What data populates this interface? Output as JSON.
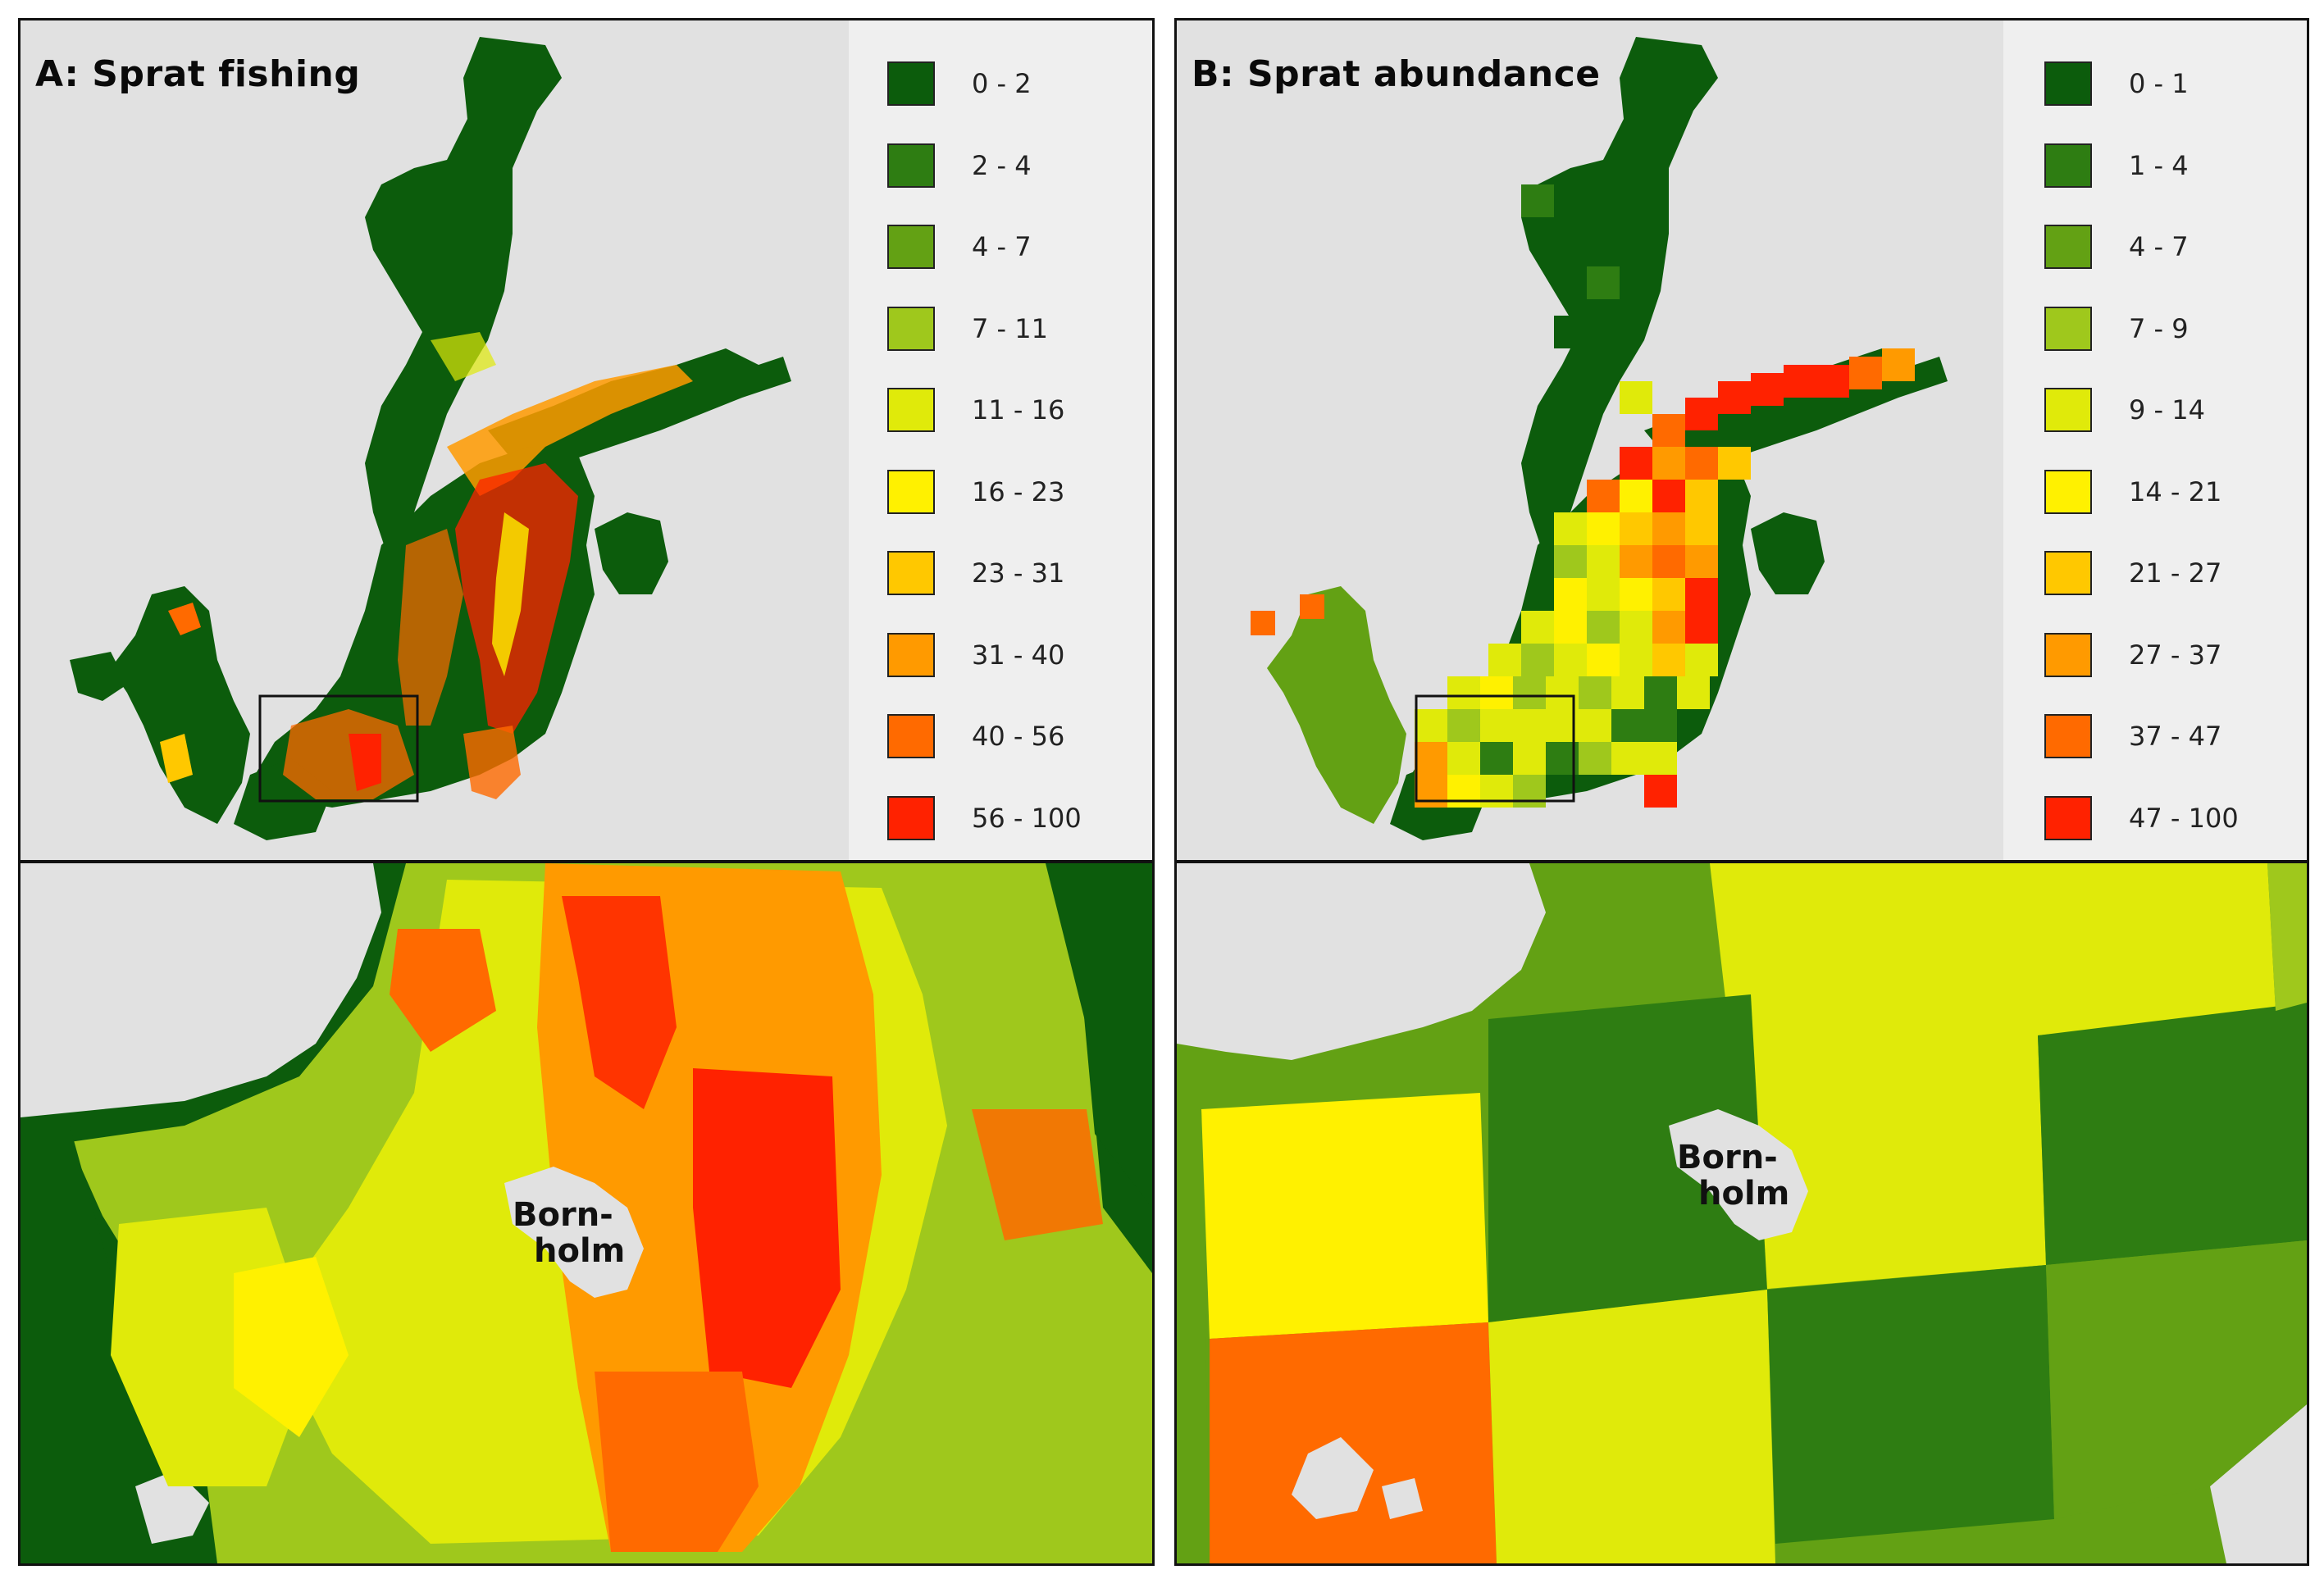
{
  "panel_a": {
    "title": "A: Sprat fishing",
    "legend": [
      {
        "label": "0 - 2",
        "color": "#0c5c0c"
      },
      {
        "label": "2 - 4",
        "color": "#2e7d12"
      },
      {
        "label": "4 - 7",
        "color": "#63a114"
      },
      {
        "label": "7 - 11",
        "color": "#9fc81c"
      },
      {
        "label": "11 - 16",
        "color": "#e0ea0a"
      },
      {
        "label": "16 - 23",
        "color": "#fff100"
      },
      {
        "label": "23 - 31",
        "color": "#ffc800"
      },
      {
        "label": "31 - 40",
        "color": "#ff9a00"
      },
      {
        "label": "40 - 56",
        "color": "#ff6a00"
      },
      {
        "label": "56 - 100",
        "color": "#ff2200"
      }
    ],
    "zoom_label_line1": "Born-",
    "zoom_label_line2": "holm"
  },
  "panel_b": {
    "title": "B: Sprat abundance",
    "legend": [
      {
        "label": "0 - 1",
        "color": "#0c5c0c"
      },
      {
        "label": "1 - 4",
        "color": "#2e7d12"
      },
      {
        "label": "4 - 7",
        "color": "#63a114"
      },
      {
        "label": "7 - 9",
        "color": "#9fc81c"
      },
      {
        "label": "9 - 14",
        "color": "#e0ea0a"
      },
      {
        "label": "14 - 21",
        "color": "#fff100"
      },
      {
        "label": "21 - 27",
        "color": "#ffc800"
      },
      {
        "label": "27 - 37",
        "color": "#ff9a00"
      },
      {
        "label": "37 - 47",
        "color": "#ff6a00"
      },
      {
        "label": "47 - 100",
        "color": "#ff2200"
      }
    ],
    "zoom_label_line1": "Born-",
    "zoom_label_line2": "holm"
  },
  "colors": {
    "land": "#e1e1e1",
    "legend_background": "#efefef",
    "frame": "#111111"
  }
}
